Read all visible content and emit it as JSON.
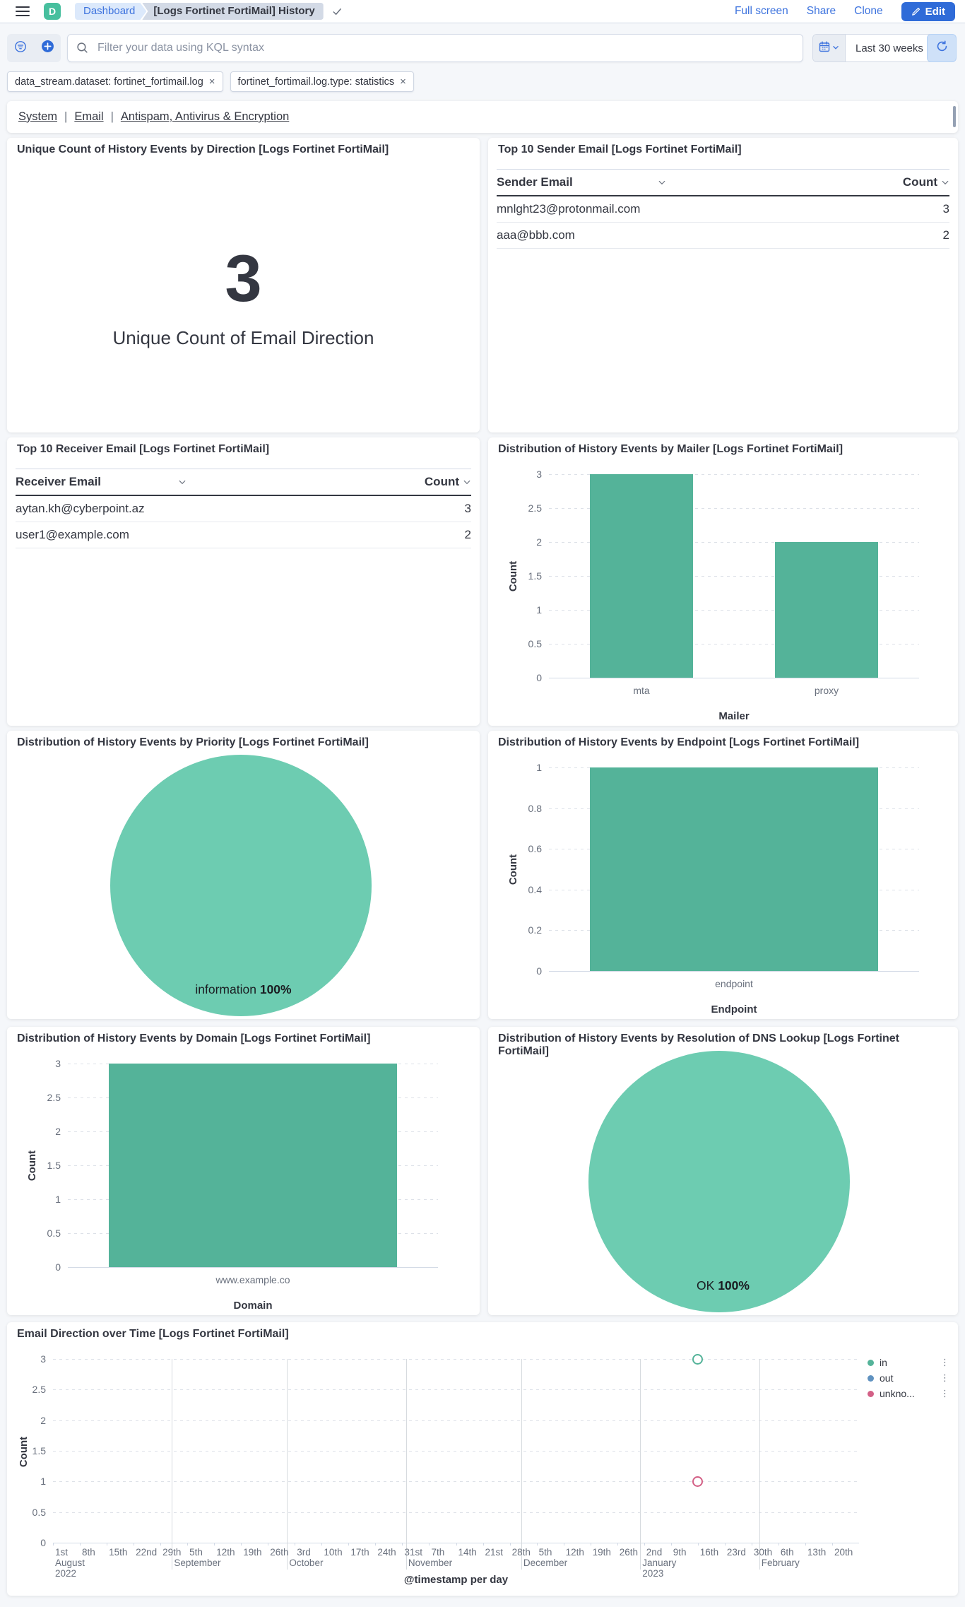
{
  "header": {
    "logo_letter": "D",
    "breadcrumbs": {
      "root": "Dashboard",
      "current": "[Logs Fortinet FortiMail] History"
    },
    "actions": {
      "full_screen": "Full screen",
      "share": "Share",
      "clone": "Clone",
      "edit": "Edit"
    }
  },
  "query_bar": {
    "search_placeholder": "Filter your data using KQL syntax",
    "time_range": "Last 30 weeks"
  },
  "filters": [
    "data_stream.dataset: fortinet_fortimail.log",
    "fortinet_fortimail.log.type: statistics"
  ],
  "nav_links": [
    "System",
    "Email",
    "Antispam, Antivirus & Encryption"
  ],
  "panels": {
    "metric": {
      "title": "Unique Count of History Events by Direction [Logs Fortinet FortiMail]",
      "value": "3",
      "label": "Unique Count of Email Direction"
    },
    "sender": {
      "title": "Top 10 Sender Email [Logs Fortinet FortiMail]",
      "columns": [
        "Sender Email",
        "Count"
      ],
      "rows": [
        [
          "mnlght23@protonmail.com",
          "3"
        ],
        [
          "aaa@bbb.com",
          "2"
        ]
      ]
    },
    "receiver": {
      "title": "Top 10 Receiver Email [Logs Fortinet FortiMail]",
      "columns": [
        "Receiver Email",
        "Count"
      ],
      "rows": [
        [
          "aytan.kh@cyberpoint.az",
          "3"
        ],
        [
          "user1@example.com",
          "2"
        ]
      ]
    },
    "mailer": {
      "title": "Distribution of History Events by Mailer [Logs Fortinet FortiMail]"
    },
    "priority": {
      "title": "Distribution of History Events by Priority [Logs Fortinet FortiMail]"
    },
    "endpoint": {
      "title": "Distribution of History Events by Endpoint [Logs Fortinet FortiMail]"
    },
    "domain": {
      "title": "Distribution of History Events by Domain [Logs Fortinet FortiMail]"
    },
    "dns": {
      "title": "Distribution of History Events by Resolution of DNS Lookup [Logs Fortinet FortiMail]"
    },
    "timeline": {
      "title": "Email Direction over Time [Logs Fortinet FortiMail]"
    }
  },
  "chart_data": [
    {
      "id": "mailer",
      "type": "bar",
      "categories": [
        "mta",
        "proxy"
      ],
      "values": [
        3,
        2
      ],
      "xlabel": "Mailer",
      "ylabel": "Count",
      "ylim": [
        0,
        3
      ],
      "yticks": [
        0,
        0.5,
        1,
        1.5,
        2,
        2.5,
        3
      ],
      "grid": "dashed",
      "color": "#54B399"
    },
    {
      "id": "priority",
      "type": "pie",
      "slices": [
        {
          "label": "information",
          "value": 100,
          "pct_label": "100%"
        }
      ],
      "color": "#6DCCB1"
    },
    {
      "id": "endpoint",
      "type": "bar",
      "categories": [
        "endpoint"
      ],
      "values": [
        1
      ],
      "xlabel": "Endpoint",
      "ylabel": "Count",
      "ylim": [
        0,
        1
      ],
      "yticks": [
        0,
        0.2,
        0.4,
        0.6,
        0.8,
        1
      ],
      "grid": "dashed",
      "color": "#54B399"
    },
    {
      "id": "domain",
      "type": "bar",
      "categories": [
        "www.example.co"
      ],
      "values": [
        3
      ],
      "xlabel": "Domain",
      "ylabel": "Count",
      "ylim": [
        0,
        3
      ],
      "yticks": [
        0,
        0.5,
        1,
        1.5,
        2,
        2.5,
        3
      ],
      "grid": "dashed",
      "color": "#54B399"
    },
    {
      "id": "dns",
      "type": "pie",
      "slices": [
        {
          "label": "OK",
          "value": 100,
          "pct_label": "100%"
        }
      ],
      "color": "#6DCCB1"
    },
    {
      "id": "timeline",
      "type": "scatter",
      "xlabel": "@timestamp per day",
      "ylabel": "Count",
      "ylim": [
        0,
        3
      ],
      "yticks": [
        0,
        0.5,
        1,
        1.5,
        2,
        2.5,
        3
      ],
      "x_range_days": 210,
      "x_ticks": [
        {
          "day": 0,
          "label": "1st"
        },
        {
          "day": 7,
          "label": "8th"
        },
        {
          "day": 14,
          "label": "15th"
        },
        {
          "day": 21,
          "label": "22nd"
        },
        {
          "day": 28,
          "label": "29th"
        },
        {
          "day": 35,
          "label": "5th"
        },
        {
          "day": 42,
          "label": "12th"
        },
        {
          "day": 49,
          "label": "19th"
        },
        {
          "day": 56,
          "label": "26th"
        },
        {
          "day": 63,
          "label": "3rd"
        },
        {
          "day": 70,
          "label": "10th"
        },
        {
          "day": 77,
          "label": "17th"
        },
        {
          "day": 84,
          "label": "24th"
        },
        {
          "day": 91,
          "label": "31st"
        },
        {
          "day": 98,
          "label": "7th"
        },
        {
          "day": 105,
          "label": "14th"
        },
        {
          "day": 112,
          "label": "21st"
        },
        {
          "day": 119,
          "label": "28th"
        },
        {
          "day": 126,
          "label": "5th"
        },
        {
          "day": 133,
          "label": "12th"
        },
        {
          "day": 140,
          "label": "19th"
        },
        {
          "day": 147,
          "label": "26th"
        },
        {
          "day": 154,
          "label": "2nd"
        },
        {
          "day": 161,
          "label": "9th"
        },
        {
          "day": 168,
          "label": "16th"
        },
        {
          "day": 175,
          "label": "23rd"
        },
        {
          "day": 182,
          "label": "30th"
        },
        {
          "day": 189,
          "label": "6th"
        },
        {
          "day": 196,
          "label": "13th"
        },
        {
          "day": 203,
          "label": "20th"
        }
      ],
      "months": [
        {
          "day": 0,
          "label": "August",
          "year": "2022"
        },
        {
          "day": 31,
          "label": "September"
        },
        {
          "day": 61,
          "label": "October"
        },
        {
          "day": 92,
          "label": "November"
        },
        {
          "day": 122,
          "label": "December"
        },
        {
          "day": 153,
          "label": "January",
          "year": "2023"
        },
        {
          "day": 184,
          "label": "February"
        }
      ],
      "series": [
        {
          "name": "in",
          "legend_label": "in",
          "color": "#54B399",
          "points": [
            {
              "day": 168,
              "value": 3
            }
          ]
        },
        {
          "name": "out",
          "legend_label": "out",
          "color": "#6092C0",
          "points": []
        },
        {
          "name": "unknown",
          "legend_label": "unkno...",
          "color": "#D36086",
          "points": [
            {
              "day": 168,
              "value": 1
            }
          ]
        }
      ]
    }
  ],
  "colors": {
    "bar_teal": "#54B399",
    "pie_teal": "#6DCCB1",
    "series_blue": "#6092C0",
    "series_pink": "#D36086",
    "link_blue": "#3d73de",
    "primary_button": "#2f6bd8",
    "text": "#343741",
    "muted": "#69707d"
  }
}
